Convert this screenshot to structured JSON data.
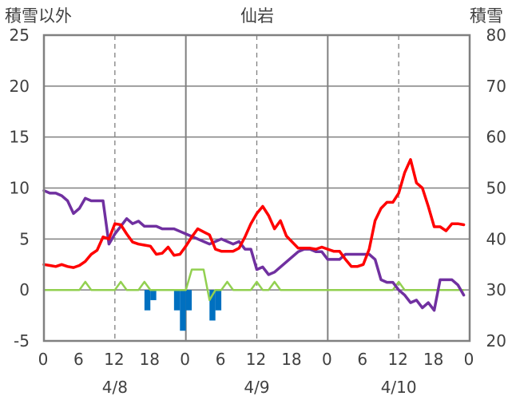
{
  "chart_data": {
    "type": "line",
    "title": "仙岩",
    "left_axis": {
      "label": "積雪以外",
      "range": [
        -5,
        25
      ],
      "ticks": [
        "-5",
        "0",
        "5",
        "10",
        "15",
        "20",
        "25"
      ]
    },
    "right_axis": {
      "label": "積雪",
      "range": [
        20,
        80
      ],
      "ticks": [
        "20",
        "30",
        "40",
        "50",
        "60",
        "70",
        "80"
      ]
    },
    "x_hours": [
      0,
      72
    ],
    "x_tick_labels": [
      "0",
      "6",
      "12",
      "18",
      "0",
      "6",
      "12",
      "18",
      "0",
      "6",
      "12",
      "18",
      "0"
    ],
    "date_labels": [
      "4/8",
      "4/9",
      "4/10"
    ],
    "grid": true,
    "colors": {
      "temperature": "#ff0000",
      "snow_depth": "#7030a0",
      "wind": "#92d050",
      "precip": "#0070c0",
      "axis": "#808080",
      "grid": "#808080"
    },
    "series": [
      {
        "key": "temperature",
        "axis": "left",
        "points": [
          [
            0,
            2.5
          ],
          [
            1,
            2.4
          ],
          [
            2,
            2.3
          ],
          [
            3,
            2.5
          ],
          [
            4,
            2.3
          ],
          [
            5,
            2.2
          ],
          [
            6,
            2.4
          ],
          [
            7,
            2.8
          ],
          [
            8,
            3.5
          ],
          [
            9,
            3.9
          ],
          [
            10,
            5.2
          ],
          [
            11,
            5.0
          ],
          [
            12,
            6.5
          ],
          [
            13,
            6.4
          ],
          [
            14,
            5.5
          ],
          [
            15,
            4.7
          ],
          [
            16,
            4.5
          ],
          [
            17,
            4.4
          ],
          [
            18,
            4.3
          ],
          [
            19,
            3.5
          ],
          [
            20,
            3.6
          ],
          [
            21,
            4.2
          ],
          [
            22,
            3.4
          ],
          [
            23,
            3.5
          ],
          [
            24,
            4.3
          ],
          [
            25,
            5.2
          ],
          [
            26,
            6.0
          ],
          [
            27,
            5.7
          ],
          [
            28,
            5.4
          ],
          [
            29,
            4.0
          ],
          [
            30,
            3.8
          ],
          [
            31,
            3.8
          ],
          [
            32,
            3.8
          ],
          [
            33,
            4.1
          ],
          [
            34,
            5.2
          ],
          [
            35,
            6.5
          ],
          [
            36,
            7.5
          ],
          [
            37,
            8.2
          ],
          [
            38,
            7.3
          ],
          [
            39,
            6.0
          ],
          [
            40,
            6.8
          ],
          [
            41,
            5.3
          ],
          [
            42,
            4.7
          ],
          [
            43,
            4.1
          ],
          [
            44,
            4.1
          ],
          [
            45,
            4.1
          ],
          [
            46,
            4.0
          ],
          [
            47,
            4.2
          ],
          [
            48,
            4.0
          ],
          [
            49,
            3.8
          ],
          [
            50,
            3.8
          ],
          [
            51,
            3.0
          ],
          [
            52,
            2.3
          ],
          [
            53,
            2.3
          ],
          [
            54,
            2.5
          ],
          [
            55,
            4.0
          ],
          [
            56,
            6.8
          ],
          [
            57,
            8.0
          ],
          [
            58,
            8.6
          ],
          [
            59,
            8.6
          ],
          [
            60,
            9.5
          ],
          [
            61,
            11.5
          ],
          [
            62,
            12.8
          ],
          [
            63,
            10.5
          ],
          [
            64,
            10.0
          ],
          [
            65,
            8.2
          ],
          [
            66,
            6.2
          ],
          [
            67,
            6.2
          ],
          [
            68,
            5.8
          ],
          [
            69,
            6.5
          ],
          [
            70,
            6.5
          ],
          [
            71,
            6.4
          ]
        ]
      },
      {
        "key": "snow_depth",
        "axis": "right",
        "points": [
          [
            0,
            49.5
          ],
          [
            1,
            49.0
          ],
          [
            2,
            49.0
          ],
          [
            3,
            48.5
          ],
          [
            4,
            47.5
          ],
          [
            5,
            45.0
          ],
          [
            6,
            46.0
          ],
          [
            7,
            48.0
          ],
          [
            8,
            47.5
          ],
          [
            9,
            47.5
          ],
          [
            10,
            47.5
          ],
          [
            11,
            39.0
          ],
          [
            12,
            41.0
          ],
          [
            13,
            42.5
          ],
          [
            14,
            44.0
          ],
          [
            15,
            43.0
          ],
          [
            16,
            43.5
          ],
          [
            17,
            42.5
          ],
          [
            18,
            42.5
          ],
          [
            19,
            42.5
          ],
          [
            20,
            42.0
          ],
          [
            21,
            42.0
          ],
          [
            22,
            42.0
          ],
          [
            23,
            41.5
          ],
          [
            24,
            41.0
          ],
          [
            25,
            40.5
          ],
          [
            26,
            40.0
          ],
          [
            27,
            39.5
          ],
          [
            28,
            39.0
          ],
          [
            29,
            39.5
          ],
          [
            30,
            40.0
          ],
          [
            31,
            39.5
          ],
          [
            32,
            39.0
          ],
          [
            33,
            39.5
          ],
          [
            34,
            38.0
          ],
          [
            35,
            38.0
          ],
          [
            36,
            34.0
          ],
          [
            37,
            34.5
          ],
          [
            38,
            33.0
          ],
          [
            39,
            33.5
          ],
          [
            40,
            34.5
          ],
          [
            41,
            35.5
          ],
          [
            42,
            36.5
          ],
          [
            43,
            37.5
          ],
          [
            44,
            38.0
          ],
          [
            45,
            38.0
          ],
          [
            46,
            37.5
          ],
          [
            47,
            37.5
          ],
          [
            48,
            36.0
          ],
          [
            49,
            36.0
          ],
          [
            50,
            36.0
          ],
          [
            51,
            37.0
          ],
          [
            52,
            37.0
          ],
          [
            53,
            37.0
          ],
          [
            54,
            37.0
          ],
          [
            55,
            37.0
          ],
          [
            56,
            36.0
          ],
          [
            57,
            32.0
          ],
          [
            58,
            31.5
          ],
          [
            59,
            31.5
          ],
          [
            60,
            30.0
          ],
          [
            61,
            29.0
          ],
          [
            62,
            27.5
          ],
          [
            63,
            28.0
          ],
          [
            64,
            26.5
          ],
          [
            65,
            27.5
          ],
          [
            66,
            26.0
          ],
          [
            67,
            32.0
          ],
          [
            68,
            32.0
          ],
          [
            69,
            32.0
          ],
          [
            70,
            31.0
          ],
          [
            71,
            29.0
          ]
        ]
      },
      {
        "key": "wind",
        "axis": "left",
        "points": [
          [
            0,
            0
          ],
          [
            6,
            0
          ],
          [
            7,
            0.8
          ],
          [
            8,
            0
          ],
          [
            12,
            0
          ],
          [
            13,
            0.8
          ],
          [
            14,
            0
          ],
          [
            16,
            0
          ],
          [
            17,
            0.8
          ],
          [
            18,
            0
          ],
          [
            24,
            0
          ],
          [
            25,
            2.0
          ],
          [
            26,
            2.0
          ],
          [
            27,
            2.0
          ],
          [
            28,
            -1.0
          ],
          [
            29,
            0
          ],
          [
            30,
            0
          ],
          [
            31,
            0.8
          ],
          [
            32,
            0
          ],
          [
            35,
            0
          ],
          [
            36,
            0.8
          ],
          [
            37,
            0
          ],
          [
            38,
            0
          ],
          [
            39,
            0.8
          ],
          [
            40,
            0
          ],
          [
            48,
            0
          ],
          [
            59,
            0
          ],
          [
            60,
            0.8
          ],
          [
            61,
            0
          ],
          [
            71,
            0
          ]
        ]
      },
      {
        "key": "precip",
        "axis": "left",
        "type": "bar",
        "bars": [
          [
            17,
            -2.0
          ],
          [
            18,
            -1.0
          ],
          [
            22,
            -2.0
          ],
          [
            23,
            -4.0
          ],
          [
            24,
            -2.0
          ],
          [
            28,
            -3.0
          ],
          [
            29,
            -2.0
          ]
        ]
      }
    ]
  }
}
